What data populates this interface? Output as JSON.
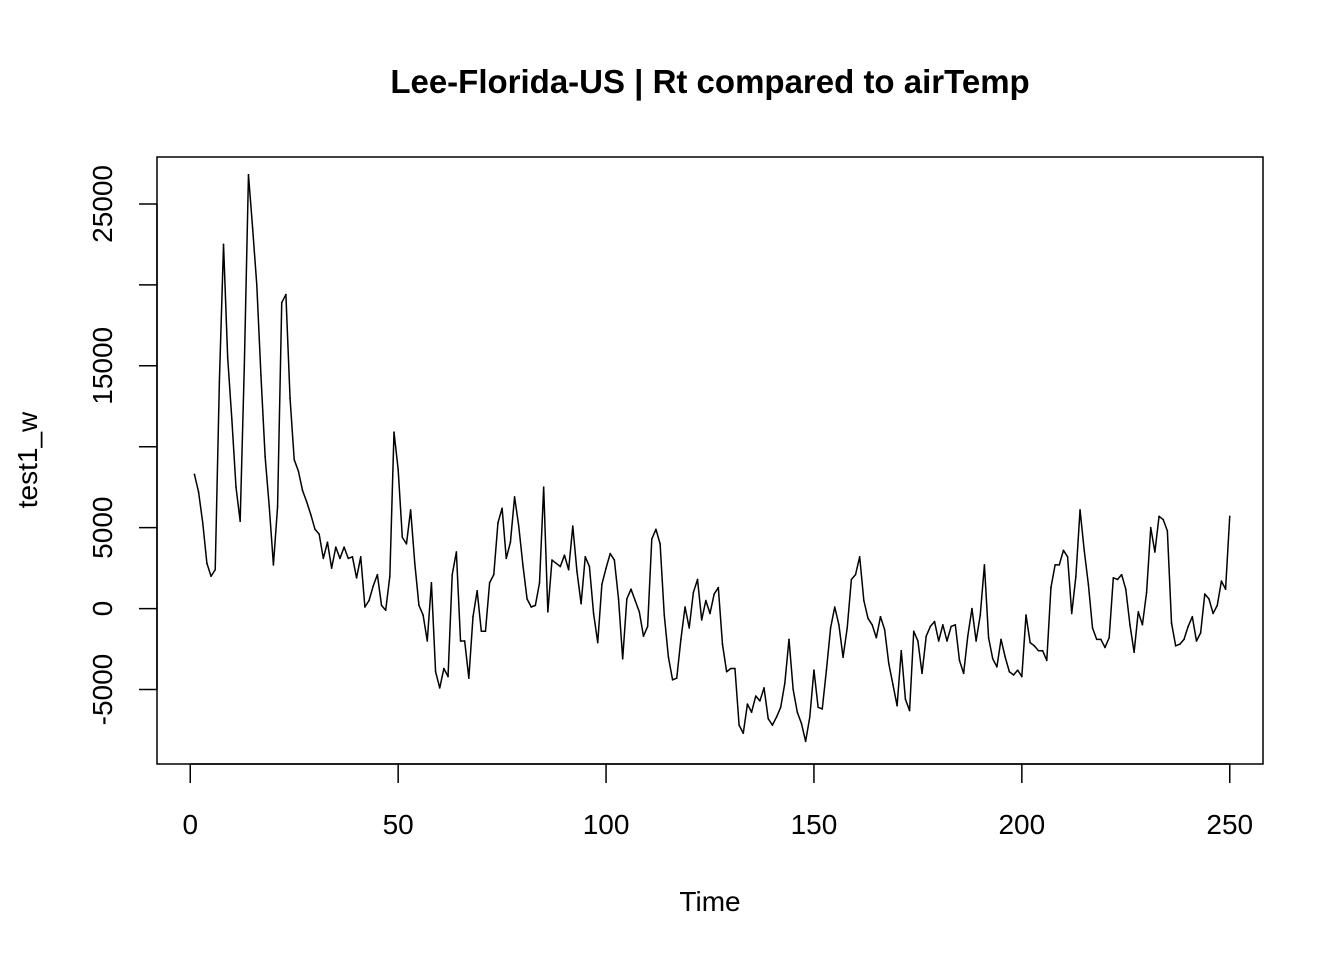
{
  "chart_data": {
    "type": "line",
    "title": "Lee-Florida-US | Rt compared to airTemp",
    "xlabel": "Time",
    "ylabel": "test1_w",
    "xlim": [
      -8,
      258
    ],
    "ylim": [
      -9600,
      27900
    ],
    "x_ticks": [
      0,
      50,
      100,
      150,
      200,
      250
    ],
    "y_ticks": [
      -5000,
      0,
      5000,
      15000,
      25000
    ],
    "grid": false,
    "line_color": "#000000",
    "series": [
      {
        "x_start": 1,
        "values": [
          8300,
          7200,
          5300,
          2800,
          2000,
          2400,
          14000,
          22500,
          15500,
          11700,
          7500,
          5400,
          15000,
          26800,
          23500,
          20000,
          14400,
          9400,
          6300,
          2700,
          6300,
          18900,
          19400,
          13000,
          9200,
          8500,
          7300,
          6600,
          5800,
          4900,
          4600,
          3100,
          4100,
          2500,
          3800,
          3100,
          3800,
          3100,
          3200,
          1900,
          3200,
          100,
          500,
          1400,
          2100,
          200,
          -100,
          2000,
          10900,
          8600,
          4400,
          4000,
          6100,
          2800,
          200,
          -400,
          -2000,
          1600,
          -3900,
          -4900,
          -3700,
          -4200,
          2100,
          3500,
          -2000,
          -2000,
          -4300,
          -500,
          1100,
          -1400,
          -1400,
          1600,
          2100,
          5300,
          6200,
          3100,
          4100,
          6900,
          5100,
          2700,
          600,
          100,
          200,
          1600,
          7500,
          -200,
          3000,
          2800,
          2600,
          3300,
          2400,
          5100,
          2300,
          300,
          3200,
          2600,
          -300,
          -2100,
          1500,
          2500,
          3400,
          3000,
          600,
          -3100,
          600,
          1200,
          500,
          -200,
          -1700,
          -1100,
          4300,
          4900,
          4000,
          -400,
          -3000,
          -4400,
          -4300,
          -1900,
          100,
          -1200,
          1000,
          1800,
          -700,
          500,
          -300,
          900,
          1300,
          -2200,
          -3900,
          -3700,
          -3700,
          -7200,
          -7700,
          -5900,
          -6400,
          -5400,
          -5700,
          -4900,
          -6800,
          -7200,
          -6700,
          -6100,
          -4600,
          -1900,
          -5000,
          -6400,
          -7100,
          -8200,
          -6700,
          -3800,
          -6100,
          -6200,
          -3800,
          -1200,
          100,
          -1000,
          -3000,
          -1200,
          1800,
          2100,
          3200,
          500,
          -600,
          -1000,
          -1800,
          -500,
          -1300,
          -3400,
          -4700,
          -6000,
          -2600,
          -5600,
          -6300,
          -1400,
          -2000,
          -4000,
          -1700,
          -1100,
          -800,
          -2000,
          -1000,
          -2000,
          -1100,
          -1000,
          -3200,
          -4000,
          -1700,
          0,
          -2000,
          -400,
          2700,
          -1800,
          -3100,
          -3600,
          -1900,
          -3000,
          -3900,
          -4100,
          -3800,
          -4200,
          -400,
          -2100,
          -2300,
          -2600,
          -2600,
          -3200,
          1300,
          2700,
          2700,
          3600,
          3200,
          -300,
          2000,
          6100,
          3600,
          1500,
          -1200,
          -1900,
          -1900,
          -2400,
          -1800,
          1900,
          1800,
          2100,
          1200,
          -1000,
          -2700,
          -200,
          -1000,
          1000,
          5000,
          3500,
          5700,
          5500,
          4800,
          -900,
          -2300,
          -2200,
          -1900,
          -1100,
          -500,
          -2000,
          -1500,
          900,
          600,
          -300,
          200,
          1700,
          1200,
          5700
        ]
      }
    ]
  }
}
